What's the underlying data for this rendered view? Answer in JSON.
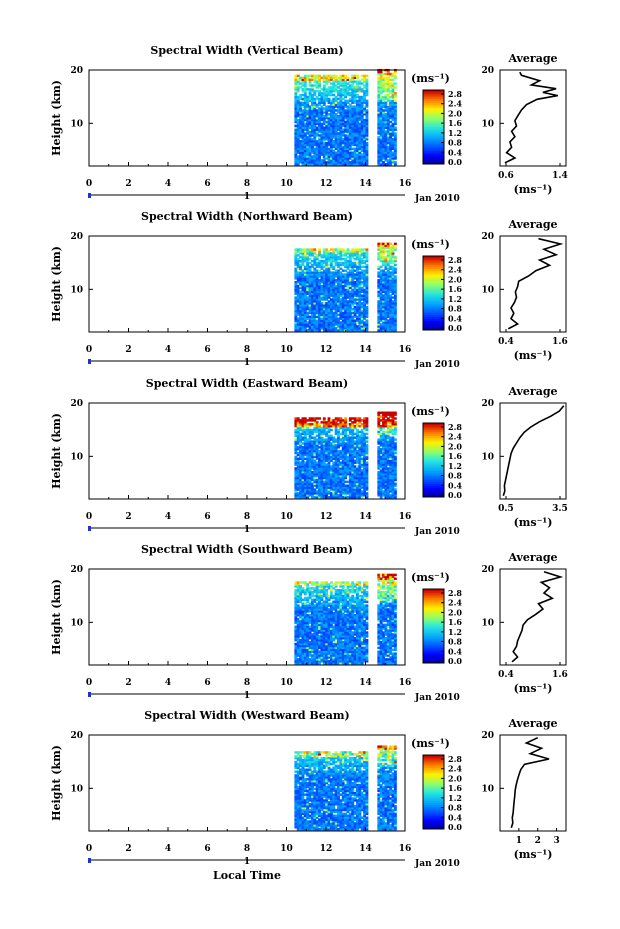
{
  "figure": {
    "xlabel": "Local Time",
    "date_label": "Jan 2010",
    "day_label": "1"
  },
  "chart_data": [
    {
      "type": "heatmap",
      "title": "Spectral Width (Vertical Beam)",
      "ylabel": "Height (km)",
      "xlim": [
        0,
        16
      ],
      "ylim": [
        2,
        20
      ],
      "x_ticks": [
        "0",
        "2",
        "4",
        "6",
        "8",
        "10",
        "12",
        "14",
        "16"
      ],
      "y_ticks": [
        "10",
        "20"
      ],
      "colorbar": {
        "unit": "(ms⁻¹)",
        "range": [
          0.0,
          2.8
        ],
        "ticks": [
          "2.8",
          "2.4",
          "2.0",
          "1.6",
          "1.2",
          "0.8",
          "0.4",
          "0.0"
        ]
      },
      "data_segments": [
        [
          10.4,
          14.1
        ],
        [
          14.6,
          15.5
        ]
      ],
      "average": {
        "title": "Average",
        "xlabel": "(ms⁻¹)",
        "xlim": [
          0.6,
          1.4
        ],
        "x_ticks": [
          "0.6",
          "1.4"
        ],
        "y_ticks": [
          "10",
          "20"
        ],
        "heights": [
          2.6,
          3.5,
          4.5,
          5.5,
          6.5,
          7.5,
          8.5,
          9.5,
          10.5,
          11.5,
          12.5,
          13.5,
          14.5,
          15.2,
          15.8,
          16.5,
          17.2,
          18.0,
          19.0,
          19.6
        ],
        "values": [
          0.66,
          0.78,
          0.68,
          0.74,
          0.72,
          0.78,
          0.74,
          0.8,
          0.78,
          0.82,
          0.86,
          0.92,
          1.05,
          1.3,
          1.12,
          1.28,
          0.98,
          1.08,
          0.86,
          0.84
        ]
      }
    },
    {
      "type": "heatmap",
      "title": "Spectral Width (Northward Beam)",
      "ylabel": "Height (km)",
      "xlim": [
        0,
        16
      ],
      "ylim": [
        2,
        20
      ],
      "x_ticks": [
        "0",
        "2",
        "4",
        "6",
        "8",
        "10",
        "12",
        "14",
        "16"
      ],
      "y_ticks": [
        "10",
        "20"
      ],
      "colorbar": {
        "unit": "(ms⁻¹)",
        "range": [
          0.0,
          2.8
        ],
        "ticks": [
          "2.8",
          "2.4",
          "2.0",
          "1.6",
          "1.2",
          "0.8",
          "0.4",
          "0.0"
        ]
      },
      "data_segments": [
        [
          10.4,
          14.1
        ],
        [
          14.6,
          15.5
        ]
      ],
      "average": {
        "title": "Average",
        "xlabel": "(ms⁻¹)",
        "xlim": [
          0.4,
          1.6
        ],
        "x_ticks": [
          "0.4",
          "1.6"
        ],
        "y_ticks": [
          "10",
          "20"
        ],
        "heights": [
          2.6,
          3.5,
          4.5,
          5.5,
          6.5,
          7.5,
          8.5,
          9.5,
          10.5,
          11.5,
          12.5,
          13.5,
          14.5,
          15.5,
          16.5,
          17.5,
          18.5,
          19.5
        ],
        "values": [
          0.55,
          0.72,
          0.6,
          0.65,
          0.6,
          0.66,
          0.7,
          0.68,
          0.72,
          0.74,
          0.92,
          1.05,
          1.3,
          1.12,
          1.42,
          1.2,
          1.5,
          1.1
        ]
      }
    },
    {
      "type": "heatmap",
      "title": "Spectral Width (Eastward Beam)",
      "ylabel": "Height (km)",
      "xlim": [
        0,
        16
      ],
      "ylim": [
        2,
        20
      ],
      "x_ticks": [
        "0",
        "2",
        "4",
        "6",
        "8",
        "10",
        "12",
        "14",
        "16"
      ],
      "y_ticks": [
        "10",
        "20"
      ],
      "colorbar": {
        "unit": "(ms⁻¹)",
        "range": [
          0.0,
          2.8
        ],
        "ticks": [
          "2.8",
          "2.4",
          "2.0",
          "1.6",
          "1.2",
          "0.8",
          "0.4",
          "0.0"
        ]
      },
      "data_segments": [
        [
          10.4,
          14.1
        ],
        [
          14.6,
          15.5
        ]
      ],
      "average": {
        "title": "Average",
        "xlabel": "(ms⁻¹)",
        "xlim": [
          0.5,
          3.5
        ],
        "x_ticks": [
          "0.5",
          "3.5"
        ],
        "y_ticks": [
          "10",
          "20"
        ],
        "heights": [
          2.6,
          3.5,
          4.5,
          5.5,
          6.5,
          7.5,
          8.5,
          9.5,
          10.5,
          11.5,
          12.5,
          13.5,
          14.5,
          15.5,
          16.5,
          17.5,
          18.5,
          19.5
        ],
        "values": [
          0.65,
          0.72,
          0.7,
          0.75,
          0.8,
          0.85,
          0.9,
          0.95,
          1.0,
          1.1,
          1.25,
          1.4,
          1.6,
          1.9,
          2.3,
          2.8,
          3.2,
          3.4
        ]
      }
    },
    {
      "type": "heatmap",
      "title": "Spectral Width (Southward Beam)",
      "ylabel": "Height (km)",
      "xlim": [
        0,
        16
      ],
      "ylim": [
        2,
        20
      ],
      "x_ticks": [
        "0",
        "2",
        "4",
        "6",
        "8",
        "10",
        "12",
        "14",
        "16"
      ],
      "y_ticks": [
        "10",
        "20"
      ],
      "colorbar": {
        "unit": "(ms⁻¹)",
        "range": [
          0.0,
          2.8
        ],
        "ticks": [
          "2.8",
          "2.4",
          "2.0",
          "1.6",
          "1.2",
          "0.8",
          "0.4",
          "0.0"
        ]
      },
      "data_segments": [
        [
          10.4,
          14.1
        ],
        [
          14.6,
          15.5
        ]
      ],
      "average": {
        "title": "Average",
        "xlabel": "(ms⁻¹)",
        "xlim": [
          0.4,
          1.6
        ],
        "x_ticks": [
          "0.4",
          "1.6"
        ],
        "y_ticks": [
          "10",
          "20"
        ],
        "heights": [
          2.6,
          3.5,
          4.5,
          5.5,
          6.5,
          7.5,
          8.5,
          9.5,
          10.5,
          11.5,
          12.5,
          13.5,
          14.5,
          15.5,
          16.5,
          17.5,
          18.5,
          19.5
        ],
        "values": [
          0.62,
          0.72,
          0.64,
          0.7,
          0.72,
          0.76,
          0.8,
          0.82,
          0.9,
          1.05,
          1.18,
          1.1,
          1.35,
          1.2,
          1.3,
          1.15,
          1.5,
          1.2
        ]
      }
    },
    {
      "type": "heatmap",
      "title": "Spectral Width (Westward Beam)",
      "ylabel": "Height (km)",
      "xlim": [
        0,
        16
      ],
      "ylim": [
        2,
        20
      ],
      "x_ticks": [
        "0",
        "2",
        "4",
        "6",
        "8",
        "10",
        "12",
        "14",
        "16"
      ],
      "y_ticks": [
        "10",
        "20"
      ],
      "colorbar": {
        "unit": "(ms⁻¹)",
        "range": [
          0.0,
          2.8
        ],
        "ticks": [
          "2.8",
          "2.4",
          "2.0",
          "1.6",
          "1.2",
          "0.8",
          "0.4",
          "0.0"
        ]
      },
      "data_segments": [
        [
          10.4,
          14.1
        ],
        [
          14.6,
          15.5
        ]
      ],
      "average": {
        "title": "Average",
        "xlabel": "(ms⁻¹)",
        "xlim": [
          0.0,
          3.5
        ],
        "x_ticks": [
          "1",
          "2",
          "3"
        ],
        "y_ticks": [
          "10",
          "20"
        ],
        "heights": [
          2.6,
          3.5,
          4.5,
          5.5,
          6.5,
          7.5,
          8.5,
          9.5,
          10.5,
          11.5,
          12.5,
          13.5,
          14.5,
          15.5,
          16.5,
          17.5,
          18.5,
          19.5
        ],
        "values": [
          0.6,
          0.68,
          0.65,
          0.7,
          0.72,
          0.75,
          0.78,
          0.8,
          0.85,
          0.92,
          1.0,
          1.1,
          1.3,
          2.6,
          1.6,
          2.2,
          1.4,
          2.0
        ]
      }
    }
  ]
}
